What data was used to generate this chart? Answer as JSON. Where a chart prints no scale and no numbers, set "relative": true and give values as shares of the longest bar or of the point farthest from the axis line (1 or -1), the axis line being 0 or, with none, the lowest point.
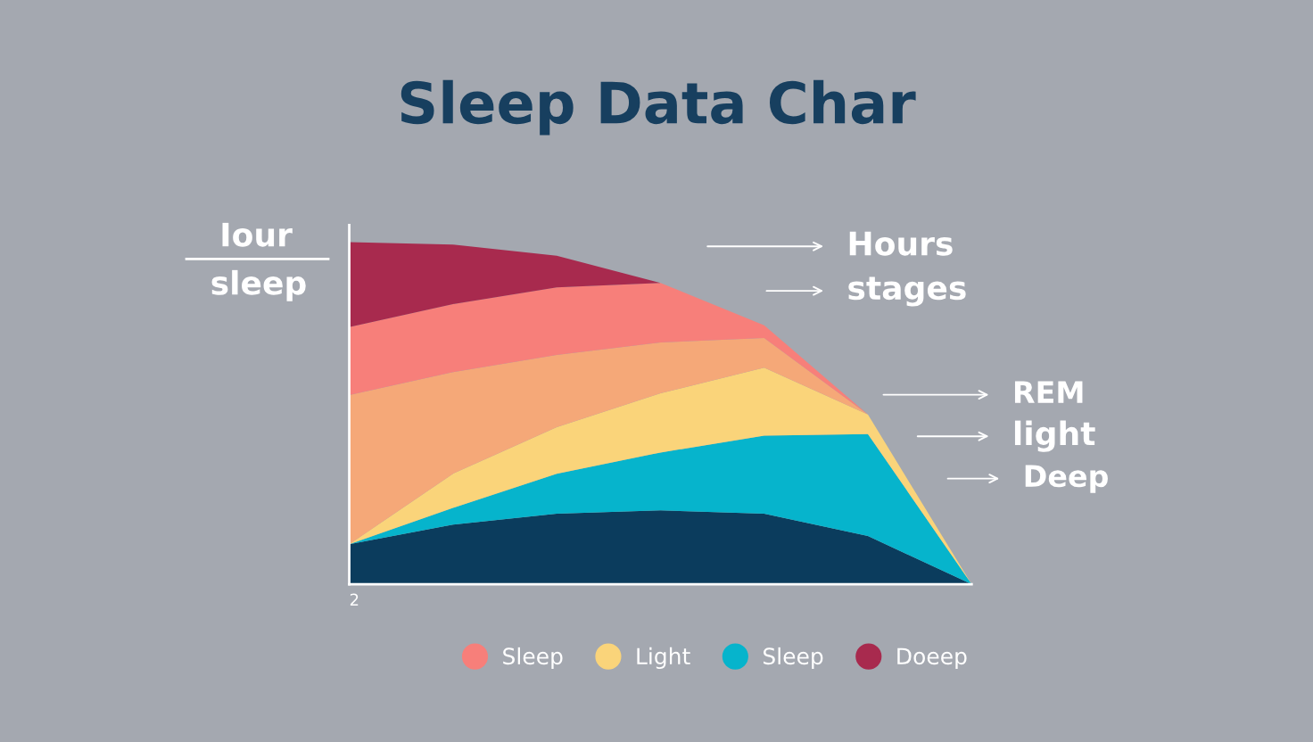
{
  "chart_data": {
    "type": "area",
    "title": "Sleep Data Char",
    "relative": true,
    "stacked": true,
    "categories": [
      null,
      null,
      null,
      null,
      null,
      null,
      null
    ],
    "series": [
      {
        "color": "#0b3c5d",
        "values": [
          0.117,
          0.174,
          0.206,
          0.216,
          0.206,
          0.141,
          0
        ]
      },
      {
        "name": "Sleep",
        "color": "#06b4cc",
        "values": [
          0,
          0.049,
          0.117,
          0.169,
          0.228,
          0.298,
          0
        ]
      },
      {
        "name": "Light",
        "color": "#fad47a",
        "values": [
          0,
          0.1,
          0.136,
          0.173,
          0.199,
          0.057,
          0
        ]
      },
      {
        "color": "#f5a878",
        "values": [
          0.436,
          0.297,
          0.211,
          0.149,
          0.087,
          0,
          0
        ]
      },
      {
        "name": "Sleep",
        "color": "#f77f7a",
        "values": [
          0.199,
          0.199,
          0.198,
          0.174,
          0.037,
          0,
          0
        ]
      },
      {
        "name": "Doeep",
        "color": "#a82a4e",
        "values": [
          0.248,
          0.174,
          0.092,
          0,
          0,
          0,
          0
        ]
      }
    ],
    "annotations": [
      "Iour",
      "sleep",
      "Hours",
      "stages",
      "REM",
      "light",
      "Deep",
      "2"
    ],
    "legend": "bottom",
    "grid": false
  }
}
